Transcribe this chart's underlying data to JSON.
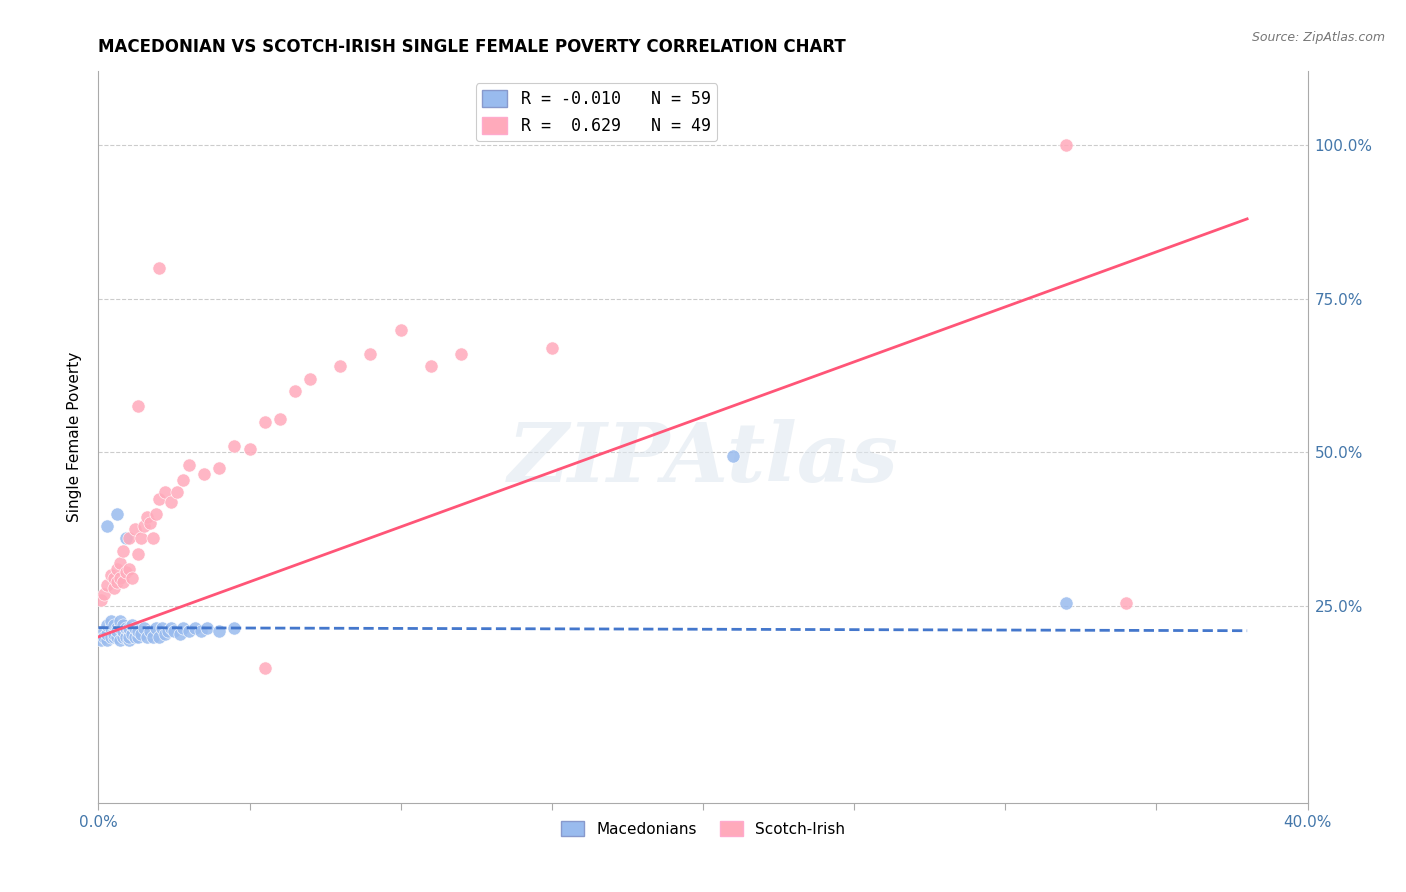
{
  "title": "MACEDONIAN VS SCOTCH-IRISH SINGLE FEMALE POVERTY CORRELATION CHART",
  "source": "Source: ZipAtlas.com",
  "ylabel": "Single Female Poverty",
  "xlim": [
    0.0,
    0.4
  ],
  "ylim": [
    -0.07,
    1.12
  ],
  "xtick_positions": [
    0.0,
    0.05,
    0.1,
    0.15,
    0.2,
    0.25,
    0.3,
    0.35,
    0.4
  ],
  "right_yticks": [
    0.25,
    0.5,
    0.75,
    1.0
  ],
  "right_yticklabels": [
    "25.0%",
    "50.0%",
    "75.0%",
    "100.0%"
  ],
  "mac_color": "#99bbee",
  "si_color": "#ffaabb",
  "watermark": "ZIPAtlas",
  "mac_x": [
    0.001,
    0.002,
    0.002,
    0.003,
    0.003,
    0.003,
    0.004,
    0.004,
    0.004,
    0.005,
    0.005,
    0.005,
    0.005,
    0.006,
    0.006,
    0.006,
    0.007,
    0.007,
    0.007,
    0.008,
    0.008,
    0.008,
    0.009,
    0.009,
    0.01,
    0.01,
    0.01,
    0.01,
    0.011,
    0.011,
    0.012,
    0.012,
    0.013,
    0.013,
    0.014,
    0.015,
    0.016,
    0.017,
    0.018,
    0.019,
    0.02,
    0.021,
    0.022,
    0.023,
    0.024,
    0.025,
    0.027,
    0.028,
    0.03,
    0.032,
    0.034,
    0.036,
    0.04,
    0.045,
    0.21,
    0.32,
    0.003,
    0.006,
    0.009
  ],
  "mac_y": [
    0.195,
    0.21,
    0.2,
    0.195,
    0.205,
    0.22,
    0.2,
    0.215,
    0.225,
    0.2,
    0.21,
    0.205,
    0.22,
    0.2,
    0.215,
    0.21,
    0.195,
    0.215,
    0.225,
    0.2,
    0.21,
    0.22,
    0.2,
    0.215,
    0.195,
    0.21,
    0.2,
    0.215,
    0.205,
    0.22,
    0.2,
    0.215,
    0.2,
    0.21,
    0.205,
    0.215,
    0.2,
    0.21,
    0.2,
    0.215,
    0.2,
    0.215,
    0.205,
    0.21,
    0.215,
    0.21,
    0.205,
    0.215,
    0.21,
    0.215,
    0.21,
    0.215,
    0.21,
    0.215,
    0.495,
    0.255,
    0.38,
    0.4,
    0.36
  ],
  "si_x": [
    0.001,
    0.002,
    0.003,
    0.004,
    0.005,
    0.005,
    0.006,
    0.006,
    0.007,
    0.007,
    0.008,
    0.008,
    0.009,
    0.01,
    0.01,
    0.011,
    0.012,
    0.013,
    0.014,
    0.015,
    0.016,
    0.017,
    0.018,
    0.019,
    0.02,
    0.022,
    0.024,
    0.026,
    0.028,
    0.03,
    0.035,
    0.04,
    0.045,
    0.05,
    0.055,
    0.06,
    0.065,
    0.07,
    0.08,
    0.09,
    0.1,
    0.11,
    0.12,
    0.15,
    0.32,
    0.34,
    0.013,
    0.02,
    0.055
  ],
  "si_y": [
    0.26,
    0.27,
    0.285,
    0.3,
    0.28,
    0.295,
    0.29,
    0.31,
    0.295,
    0.32,
    0.29,
    0.34,
    0.305,
    0.31,
    0.36,
    0.295,
    0.375,
    0.335,
    0.36,
    0.38,
    0.395,
    0.385,
    0.36,
    0.4,
    0.425,
    0.435,
    0.42,
    0.435,
    0.455,
    0.48,
    0.465,
    0.475,
    0.51,
    0.505,
    0.55,
    0.555,
    0.6,
    0.62,
    0.64,
    0.66,
    0.7,
    0.64,
    0.66,
    0.67,
    1.0,
    0.255,
    0.575,
    0.8,
    0.15
  ],
  "blue_line_x": [
    0.0,
    0.38
  ],
  "blue_line_y": [
    0.215,
    0.21
  ],
  "pink_line_x": [
    0.0,
    0.38
  ],
  "pink_line_y": [
    0.2,
    0.88
  ]
}
